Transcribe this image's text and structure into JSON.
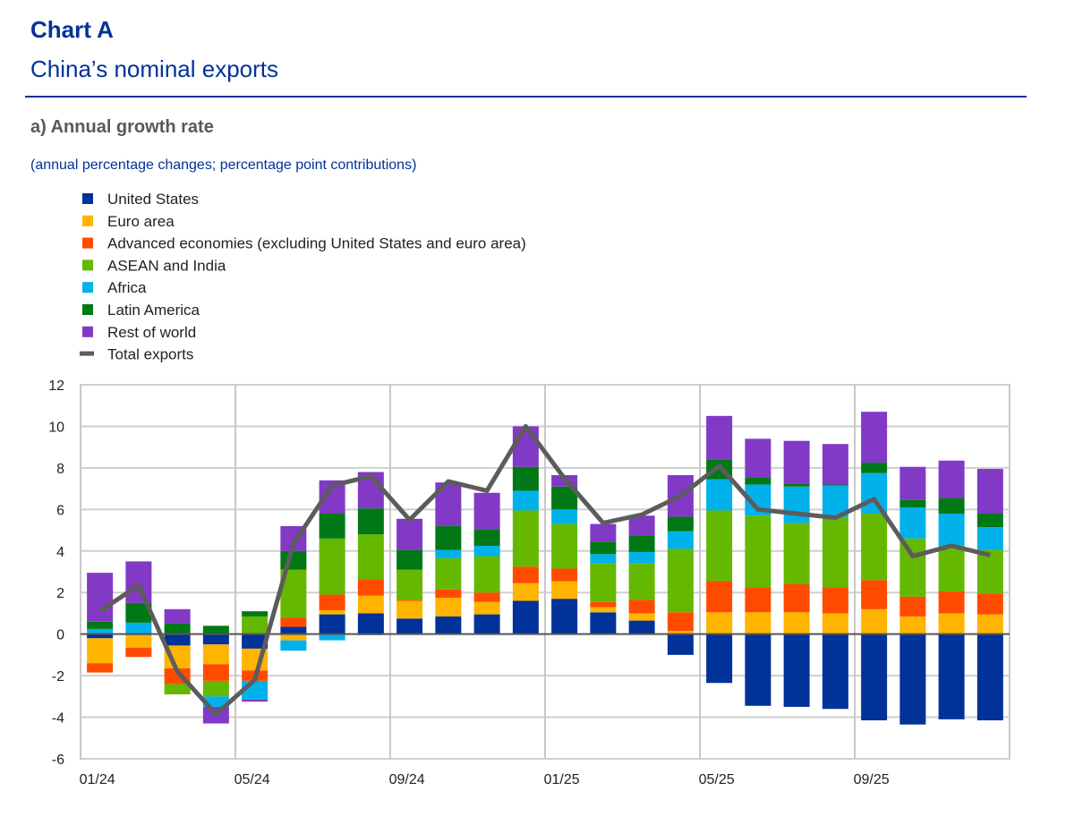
{
  "header": {
    "title": "Chart A",
    "subtitle": "China’s nominal exports",
    "panel_title": "a) Annual growth rate",
    "units_note": "(annual percentage changes; percentage point contributions)"
  },
  "chart_data": {
    "type": "bar",
    "stacked": true,
    "categories": [
      "01/24",
      "02/24",
      "03/24",
      "04/24",
      "05/24",
      "06/24",
      "07/24",
      "08/24",
      "09/24",
      "10/24",
      "11/24",
      "12/24",
      "01/25",
      "02/25",
      "03/25",
      "04/25",
      "05/25",
      "06/25",
      "07/25",
      "08/25",
      "09/25",
      "10/25",
      "11/25",
      "12/25"
    ],
    "x_tick_labels": [
      "01/24",
      "05/24",
      "09/24",
      "01/25",
      "05/25",
      "09/25"
    ],
    "ylim": [
      -6,
      12
    ],
    "y_ticks": [
      -6,
      -4,
      -2,
      0,
      2,
      4,
      6,
      8,
      10,
      12
    ],
    "grid": true,
    "legend_position": "top-left",
    "series": [
      {
        "name": "United States",
        "color": "#003299",
        "values": [
          -0.2,
          -0.05,
          -0.55,
          -0.5,
          -0.7,
          0.35,
          0.95,
          1.0,
          0.75,
          0.85,
          0.95,
          1.6,
          1.7,
          1.05,
          0.65,
          -1.0,
          -2.35,
          -3.45,
          -3.5,
          -3.6,
          -4.15,
          -4.35,
          -4.1,
          -4.15
        ]
      },
      {
        "name": "Euro area",
        "color": "#FFB400",
        "values": [
          -1.2,
          -0.6,
          -1.1,
          -0.95,
          -1.05,
          -0.3,
          0.2,
          0.85,
          0.85,
          0.9,
          0.6,
          0.85,
          0.85,
          0.25,
          0.35,
          0.15,
          1.05,
          1.05,
          1.05,
          1.0,
          1.2,
          0.85,
          1.0,
          0.95
        ]
      },
      {
        "name": "Advanced economies (excluding United States and euro area)",
        "color": "#FF4B00",
        "values": [
          -0.45,
          -0.45,
          -0.75,
          -0.8,
          -0.5,
          0.45,
          0.75,
          0.8,
          0.05,
          0.4,
          0.45,
          0.8,
          0.6,
          0.25,
          0.65,
          0.9,
          1.5,
          1.2,
          1.35,
          1.25,
          1.4,
          0.95,
          1.05,
          1.0
        ]
      },
      {
        "name": "ASEAN and India",
        "color": "#65B800",
        "values": [
          0,
          0,
          -0.5,
          -0.75,
          0.85,
          2.3,
          2.7,
          2.15,
          1.45,
          1.5,
          1.75,
          2.7,
          2.15,
          1.85,
          1.75,
          3.05,
          3.4,
          3.45,
          2.95,
          3.35,
          3.2,
          2.8,
          2.2,
          2.1
        ]
      },
      {
        "name": "Africa",
        "color": "#00B1EA",
        "values": [
          0.25,
          0.55,
          0,
          -0.5,
          -0.9,
          -0.5,
          -0.3,
          -0.05,
          0,
          0.4,
          0.5,
          0.95,
          0.7,
          0.45,
          0.55,
          0.85,
          1.5,
          1.5,
          1.75,
          1.55,
          1.95,
          1.5,
          1.55,
          1.1
        ]
      },
      {
        "name": "Latin America",
        "color": "#007816",
        "values": [
          0.35,
          0.95,
          0.5,
          0.4,
          0.25,
          0.9,
          1.2,
          1.25,
          0.95,
          1.15,
          0.8,
          1.15,
          1.1,
          0.6,
          0.8,
          0.7,
          0.95,
          0.35,
          0.15,
          0.05,
          0.5,
          0.35,
          0.75,
          0.65
        ]
      },
      {
        "name": "Rest of world",
        "color": "#8139C6",
        "values": [
          2.35,
          2.0,
          0.7,
          -0.8,
          -0.1,
          1.2,
          1.6,
          1.75,
          1.5,
          2.1,
          1.75,
          1.95,
          0.55,
          0.85,
          0.95,
          2.0,
          2.1,
          1.85,
          2.05,
          1.95,
          2.45,
          1.6,
          1.8,
          2.15
        ]
      }
    ],
    "line_series": {
      "name": "Total exports",
      "color": "#5C5C5C",
      "values": [
        1.1,
        2.35,
        -1.8,
        -3.85,
        -2.2,
        4.35,
        7.15,
        7.6,
        5.5,
        7.35,
        6.9,
        10.0,
        7.5,
        5.35,
        5.75,
        6.65,
        8.1,
        6.0,
        5.8,
        5.6,
        6.5,
        3.75,
        4.25,
        3.8
      ]
    }
  }
}
